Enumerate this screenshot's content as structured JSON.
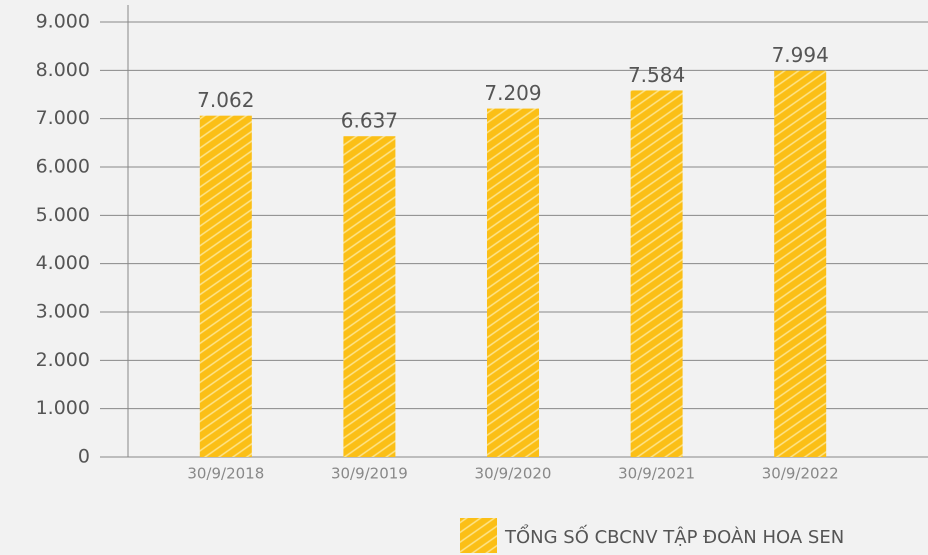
{
  "chart_data": {
    "type": "bar",
    "categories": [
      "30/9/2018",
      "30/9/2019",
      "30/9/2020",
      "30/9/2021",
      "30/9/2022"
    ],
    "series": [
      {
        "name": "TỔNG SỐ CBCNV TẬP ĐOÀN HOA SEN",
        "color": "#fbbf16",
        "values": [
          7062,
          6637,
          7209,
          7584,
          7994
        ],
        "value_labels": [
          "7.062",
          "6.637",
          "7.209",
          "7.584",
          "7.994"
        ]
      }
    ],
    "ylim": [
      0,
      9000
    ],
    "yticks": [
      {
        "value": 0,
        "label": "0"
      },
      {
        "value": 1000,
        "label": "1.000"
      },
      {
        "value": 2000,
        "label": "2.000"
      },
      {
        "value": 3000,
        "label": "3.000"
      },
      {
        "value": 4000,
        "label": "4.000"
      },
      {
        "value": 5000,
        "label": "5.000"
      },
      {
        "value": 6000,
        "label": "6.000"
      },
      {
        "value": 7000,
        "label": "7.000"
      },
      {
        "value": 8000,
        "label": "8.000"
      },
      {
        "value": 9000,
        "label": "9.000"
      }
    ],
    "grid": true
  }
}
